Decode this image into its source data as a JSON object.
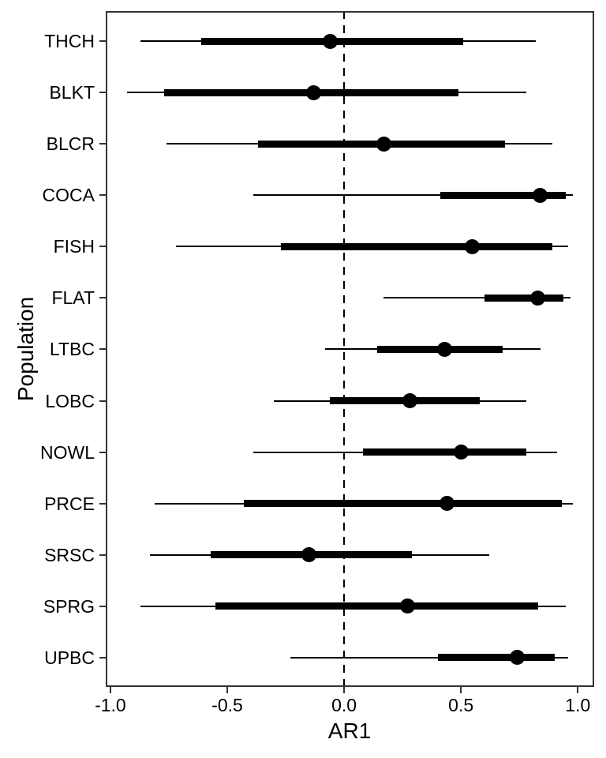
{
  "figure": {
    "background_color": "#ffffff",
    "text_color": "#000000",
    "data_color": "#000000",
    "panel_border_color": "#333333"
  },
  "chart_data": {
    "type": "scatter",
    "subtype": "forest-plot-pointrange",
    "title": "",
    "xlabel": "AR1",
    "ylabel": "Population",
    "xlim": [
      -1.02,
      1.07
    ],
    "grid": "off",
    "legend": "none",
    "reference_line": {
      "x": 0,
      "style": "dashed"
    },
    "x_ticks": [
      {
        "value": -1.0,
        "label": "-1.0"
      },
      {
        "value": -0.5,
        "label": "-0.5"
      },
      {
        "value": 0.0,
        "label": "0.0"
      },
      {
        "value": 0.5,
        "label": "0.5"
      },
      {
        "value": 1.0,
        "label": "1.0"
      }
    ],
    "categories": [
      "THCH",
      "BLKT",
      "BLCR",
      "COCA",
      "FISH",
      "FLAT",
      "LTBC",
      "LOBC",
      "NOWL",
      "PRCE",
      "SRSC",
      "SPRG",
      "UPBC"
    ],
    "rows": [
      {
        "label": "THCH",
        "point": -0.06,
        "inner_interval": [
          -0.61,
          0.51
        ],
        "outer_interval": [
          -0.87,
          0.82
        ]
      },
      {
        "label": "BLKT",
        "point": -0.13,
        "inner_interval": [
          -0.77,
          0.49
        ],
        "outer_interval": [
          -0.93,
          0.78
        ]
      },
      {
        "label": "BLCR",
        "point": 0.17,
        "inner_interval": [
          -0.37,
          0.69
        ],
        "outer_interval": [
          -0.76,
          0.89
        ]
      },
      {
        "label": "COCA",
        "point": 0.84,
        "inner_interval": [
          0.41,
          0.95
        ],
        "outer_interval": [
          -0.39,
          0.98
        ]
      },
      {
        "label": "FISH",
        "point": 0.55,
        "inner_interval": [
          -0.27,
          0.89
        ],
        "outer_interval": [
          -0.72,
          0.96
        ]
      },
      {
        "label": "FLAT",
        "point": 0.83,
        "inner_interval": [
          0.6,
          0.94
        ],
        "outer_interval": [
          0.17,
          0.97
        ]
      },
      {
        "label": "LTBC",
        "point": 0.43,
        "inner_interval": [
          0.14,
          0.68
        ],
        "outer_interval": [
          -0.08,
          0.84
        ]
      },
      {
        "label": "LOBC",
        "point": 0.28,
        "inner_interval": [
          -0.06,
          0.58
        ],
        "outer_interval": [
          -0.3,
          0.78
        ]
      },
      {
        "label": "NOWL",
        "point": 0.5,
        "inner_interval": [
          0.08,
          0.78
        ],
        "outer_interval": [
          -0.39,
          0.91
        ]
      },
      {
        "label": "PRCE",
        "point": 0.44,
        "inner_interval": [
          -0.43,
          0.93
        ],
        "outer_interval": [
          -0.81,
          0.98
        ]
      },
      {
        "label": "SRSC",
        "point": -0.15,
        "inner_interval": [
          -0.57,
          0.29
        ],
        "outer_interval": [
          -0.83,
          0.62
        ]
      },
      {
        "label": "SPRG",
        "point": 0.27,
        "inner_interval": [
          -0.55,
          0.83
        ],
        "outer_interval": [
          -0.87,
          0.95
        ]
      },
      {
        "label": "UPBC",
        "point": 0.74,
        "inner_interval": [
          0.4,
          0.9
        ],
        "outer_interval": [
          -0.23,
          0.96
        ]
      }
    ]
  }
}
